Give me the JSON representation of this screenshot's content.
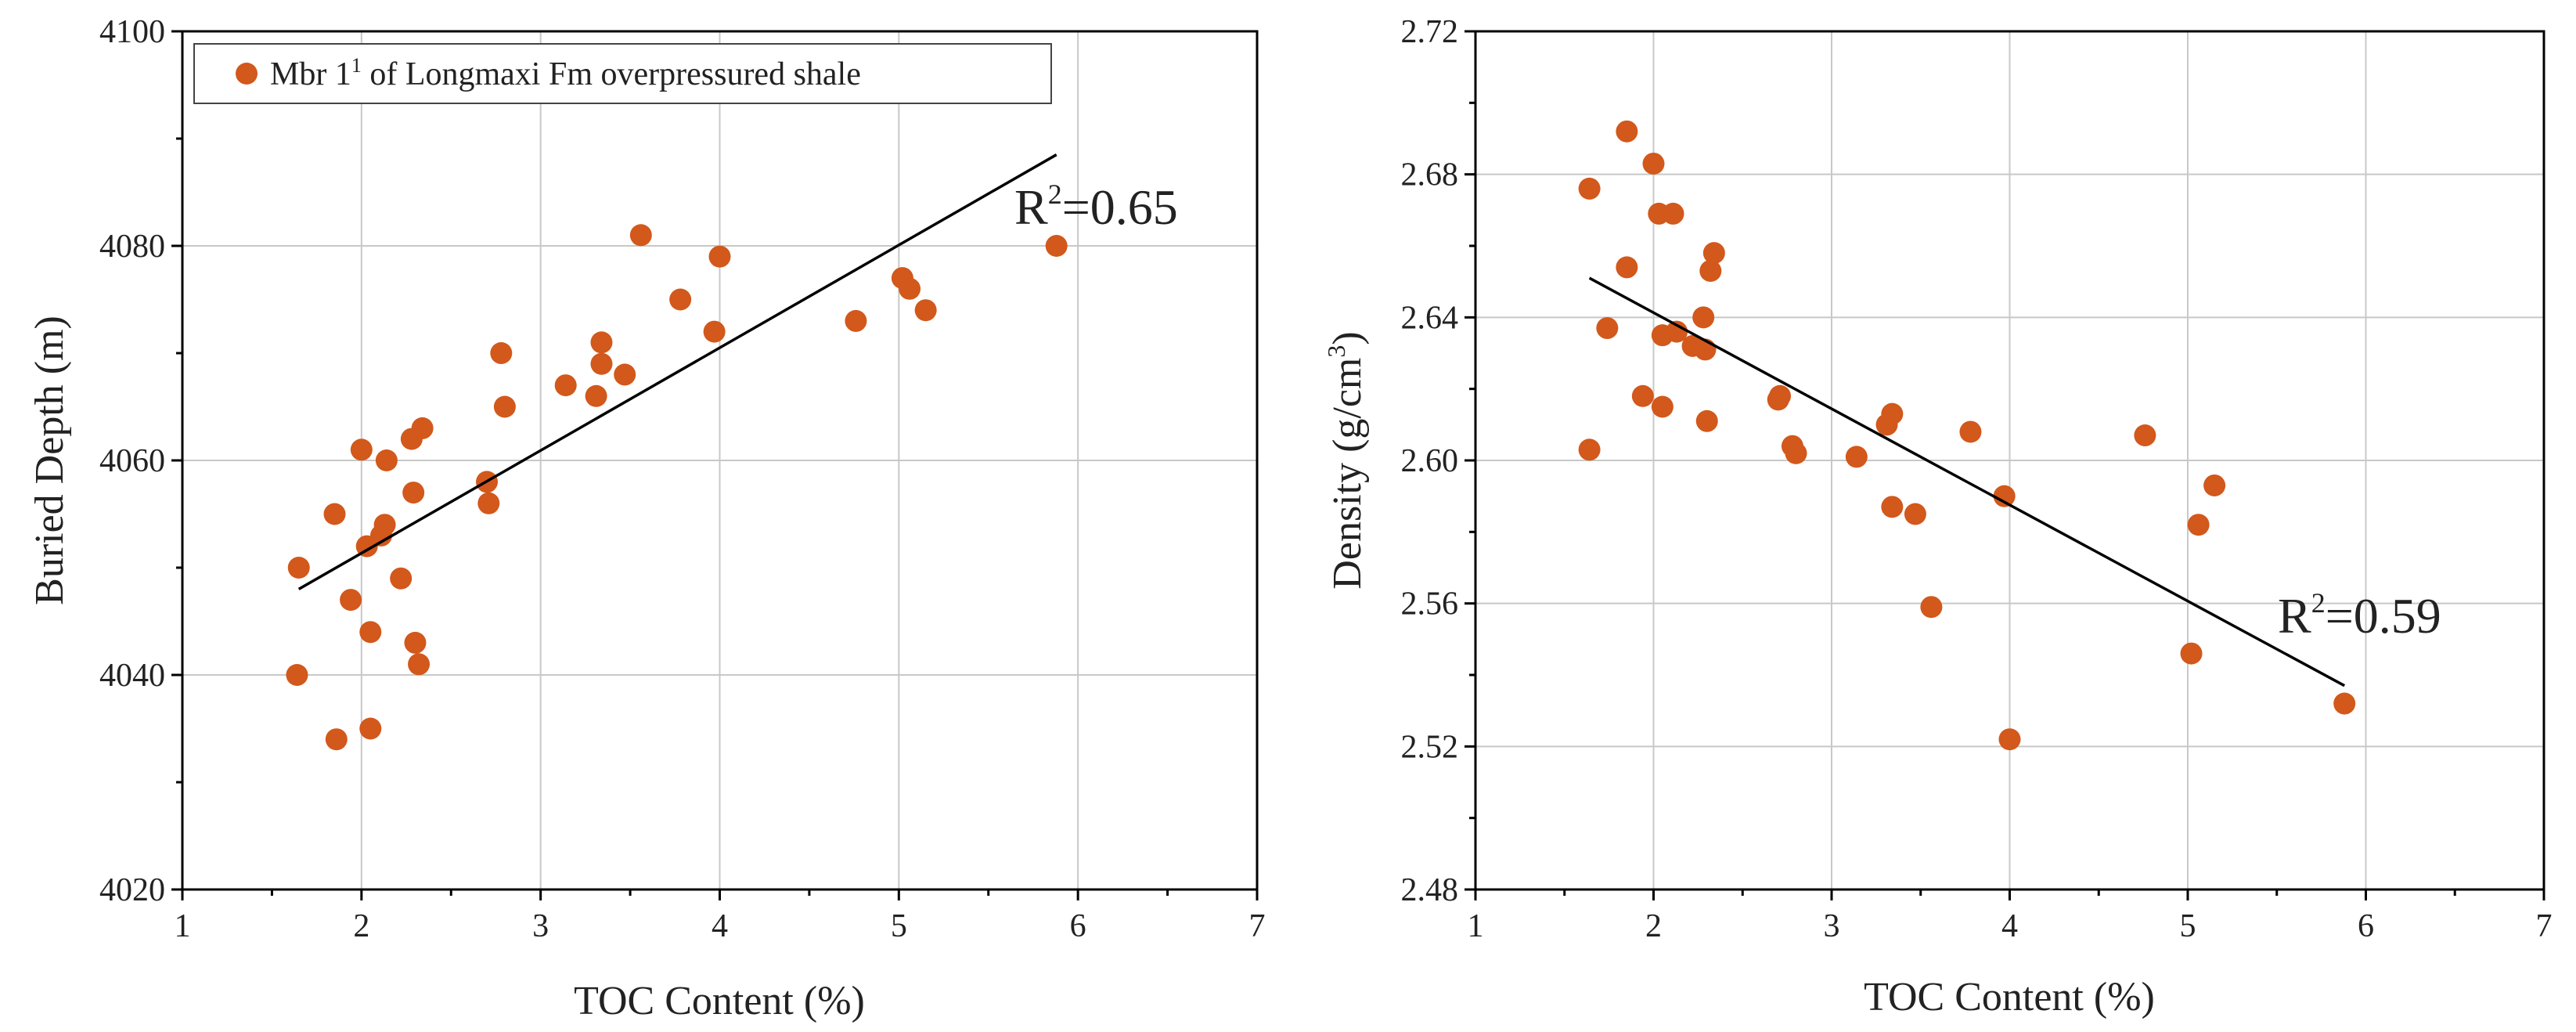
{
  "chart_data": [
    {
      "type": "scatter",
      "id": "left",
      "xlabel": "TOC Content (%)",
      "ylabel": "Buried Depth (m)",
      "xlim": [
        1,
        7
      ],
      "ylim": [
        4020,
        4100
      ],
      "xticks": [
        1,
        2,
        3,
        4,
        5,
        6,
        7
      ],
      "yticks": [
        4020,
        4040,
        4060,
        4080,
        4100
      ],
      "grid": true,
      "marker_color": "#d2581b",
      "legend": {
        "placement": "top-left",
        "text_prefix": "Mbr 1",
        "superscript": "1",
        "text_suffix": " of Longmaxi Fm overpressured shale"
      },
      "annotation": {
        "base": "R",
        "sup": "2",
        "text": "=0.65"
      },
      "fit": {
        "x": [
          1.65,
          5.88
        ],
        "y": [
          4048,
          4088.5
        ]
      },
      "series": [
        {
          "name": "Mbr 1¹ of Longmaxi Fm overpressured shale",
          "x": [
            1.64,
            1.65,
            1.85,
            1.86,
            1.94,
            2.0,
            2.03,
            2.05,
            2.05,
            2.11,
            2.13,
            2.14,
            2.22,
            2.28,
            2.29,
            2.3,
            2.32,
            2.34,
            2.7,
            2.71,
            2.78,
            2.8,
            3.14,
            3.31,
            3.34,
            3.34,
            3.47,
            3.56,
            3.78,
            3.97,
            4.0,
            4.76,
            5.02,
            5.06,
            5.15,
            5.88
          ],
          "y": [
            4040,
            4050,
            4055,
            4034,
            4047,
            4061,
            4052,
            4044,
            4035,
            4053,
            4054,
            4060,
            4049,
            4062,
            4057,
            4043,
            4041,
            4063,
            4058,
            4056,
            4070,
            4065,
            4067,
            4066,
            4071,
            4069,
            4068,
            4081,
            4075,
            4072,
            4079,
            4073,
            4077,
            4076,
            4074,
            4080
          ]
        }
      ]
    },
    {
      "type": "scatter",
      "id": "right",
      "xlabel": "TOC Content (%)",
      "ylabel_prefix": "Density (g/cm",
      "ylabel_sup": "3",
      "ylabel_suffix": ")",
      "xlim": [
        1,
        7
      ],
      "ylim": [
        2.48,
        2.72
      ],
      "xticks": [
        1,
        2,
        3,
        4,
        5,
        6,
        7
      ],
      "yticks": [
        2.48,
        2.52,
        2.56,
        2.6,
        2.64,
        2.68,
        2.72
      ],
      "ytick_labels": [
        "2.48",
        "2.52",
        "2.56",
        "2.60",
        "2.64",
        "2.68",
        "2.72"
      ],
      "grid": true,
      "marker_color": "#d2581b",
      "annotation": {
        "base": "R",
        "sup": "2",
        "text": "=0.59"
      },
      "fit": {
        "x": [
          1.64,
          5.88
        ],
        "y": [
          2.651,
          2.537
        ]
      },
      "series": [
        {
          "name": "Density",
          "x": [
            1.64,
            1.64,
            1.74,
            1.85,
            1.85,
            1.94,
            2.0,
            2.03,
            2.05,
            2.05,
            2.11,
            2.13,
            2.22,
            2.28,
            2.29,
            2.3,
            2.32,
            2.34,
            2.7,
            2.71,
            2.78,
            2.8,
            3.14,
            3.31,
            3.34,
            3.34,
            3.47,
            3.56,
            3.78,
            3.97,
            4.0,
            4.76,
            5.02,
            5.06,
            5.15,
            5.88
          ],
          "y": [
            2.676,
            2.603,
            2.637,
            2.692,
            2.654,
            2.618,
            2.683,
            2.669,
            2.635,
            2.615,
            2.669,
            2.636,
            2.632,
            2.64,
            2.631,
            2.611,
            2.653,
            2.658,
            2.617,
            2.618,
            2.604,
            2.602,
            2.601,
            2.61,
            2.613,
            2.587,
            2.585,
            2.559,
            2.608,
            2.59,
            2.522,
            2.607,
            2.546,
            2.582,
            2.593,
            2.532
          ]
        }
      ]
    }
  ]
}
